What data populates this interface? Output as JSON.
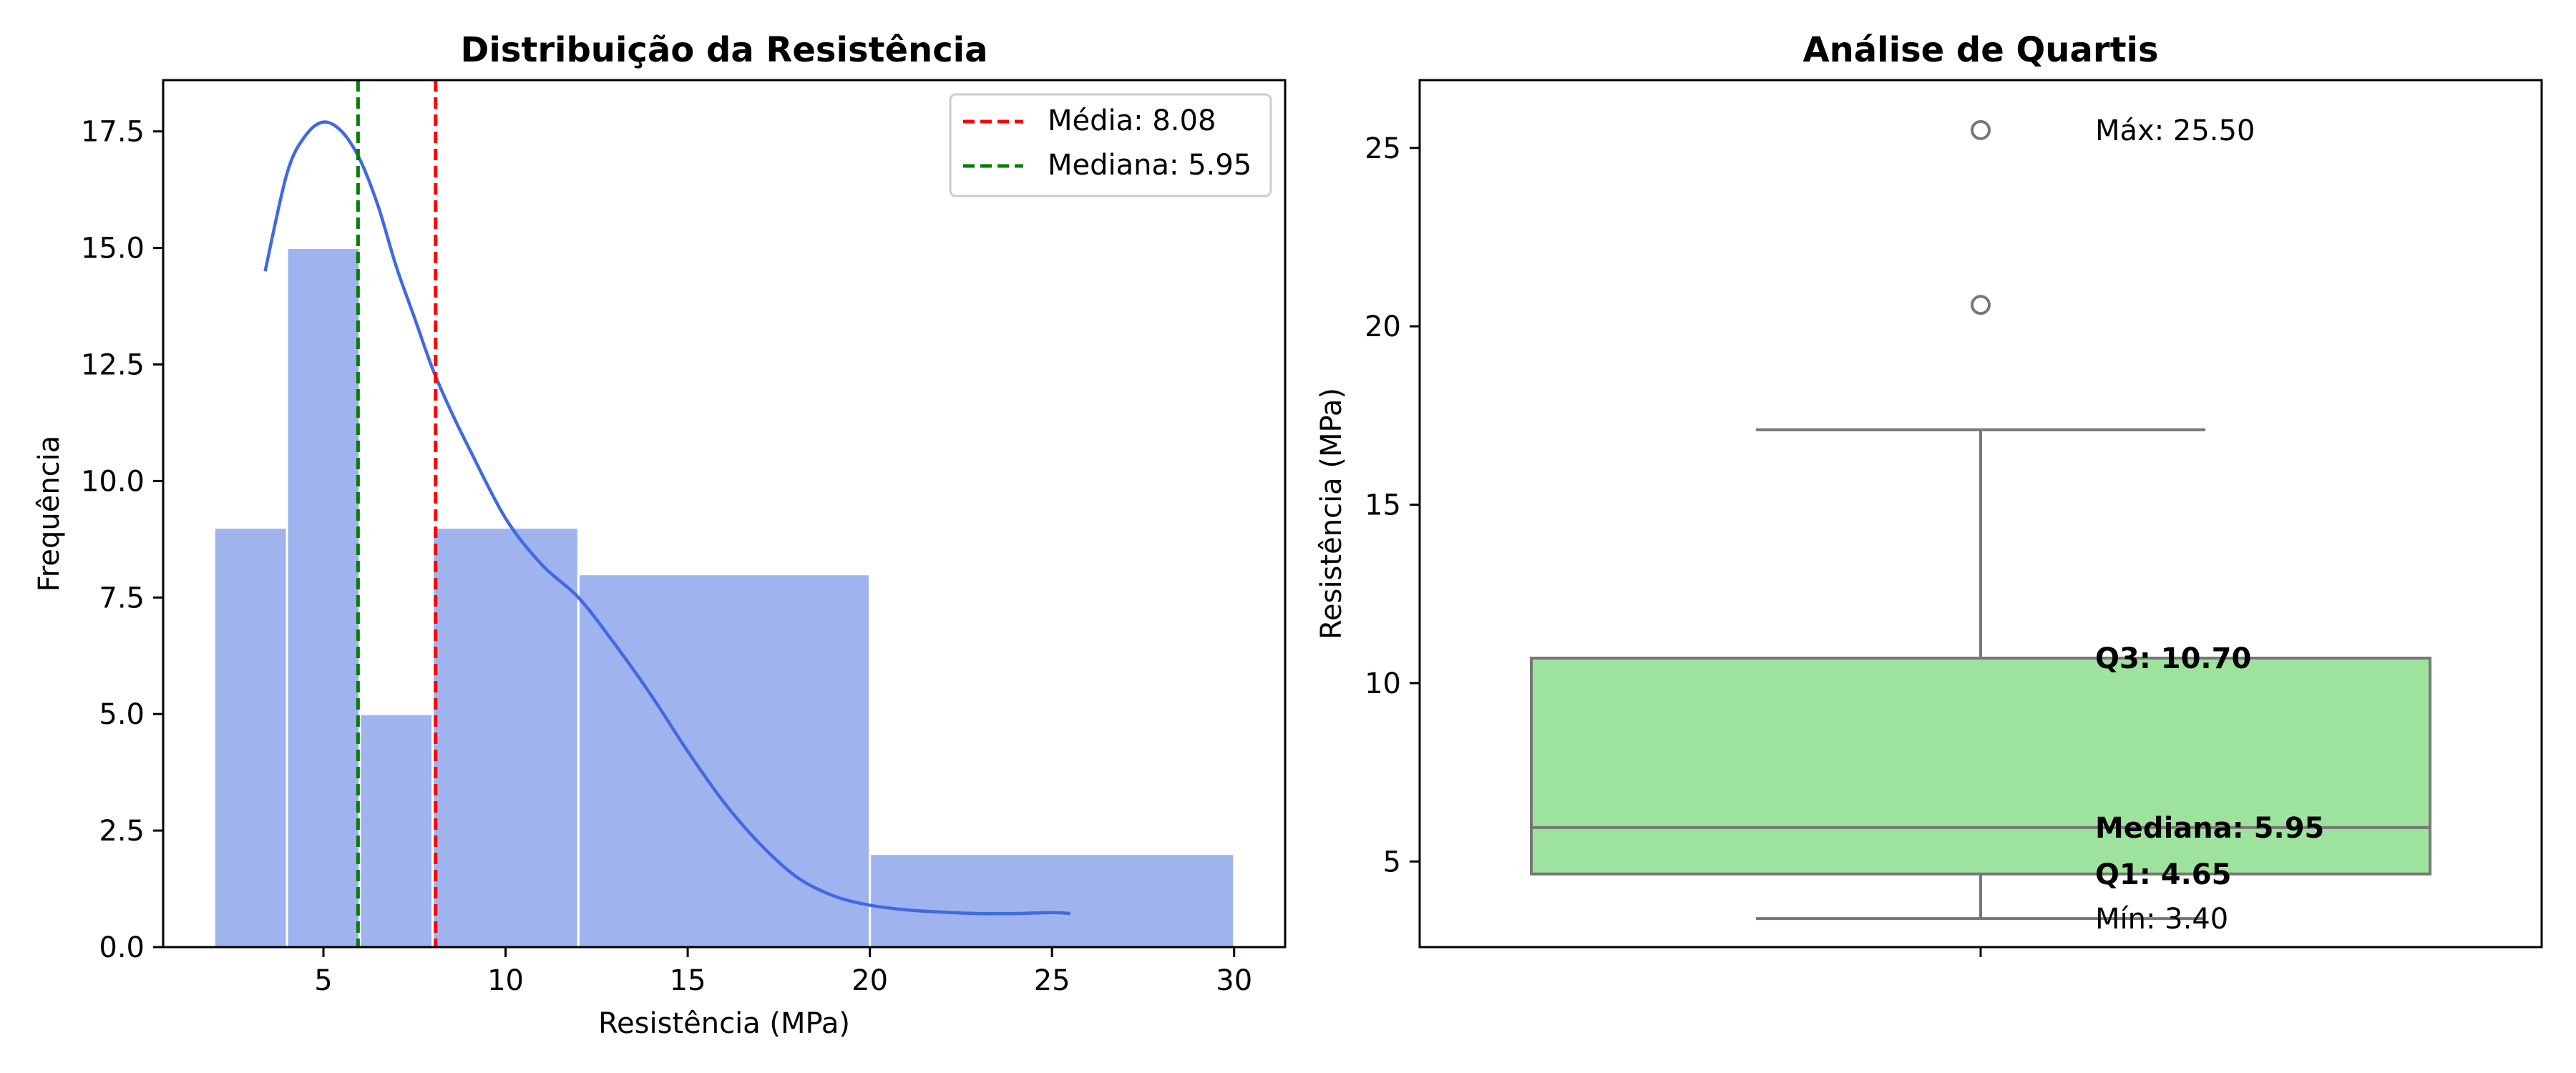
{
  "chart_data": [
    {
      "type": "bar",
      "title": "Distribuição da Resistência",
      "xlabel": "Resistência (MPa)",
      "ylabel": "Frequência",
      "xlim": [
        0.6,
        31.4
      ],
      "ylim": [
        0,
        18.6
      ],
      "xticks": [
        5,
        10,
        15,
        20,
        25,
        30
      ],
      "yticks": [
        0,
        2.5,
        5,
        7.5,
        10,
        12.5,
        15,
        17.5
      ],
      "xtick_labels": [
        "5",
        "10",
        "15",
        "20",
        "25",
        "30"
      ],
      "ytick_labels": [
        "0.0",
        "2.5",
        "5.0",
        "7.5",
        "10.0",
        "12.5",
        "15.0",
        "17.5"
      ],
      "bins": [
        {
          "start": 2,
          "end": 4,
          "count": 9
        },
        {
          "start": 4,
          "end": 6,
          "count": 15
        },
        {
          "start": 6,
          "end": 8,
          "count": 5
        },
        {
          "start": 8,
          "end": 12,
          "count": 9
        },
        {
          "start": 12,
          "end": 20,
          "count": 8
        },
        {
          "start": 20,
          "end": 30,
          "count": 2
        }
      ],
      "kde": {
        "x": [
          3.4,
          4.0,
          4.5,
          5.0,
          5.5,
          6.0,
          6.5,
          7.0,
          7.5,
          8.0,
          8.5,
          9.0,
          10.0,
          11.0,
          12.0,
          13.0,
          14.0,
          15.0,
          16.0,
          17.0,
          18.0,
          19.0,
          20.0,
          21.0,
          22.0,
          23.0,
          24.0,
          25.0,
          25.5
        ],
        "y": [
          14.5,
          16.6,
          17.4,
          17.7,
          17.5,
          16.9,
          15.9,
          14.6,
          13.5,
          12.4,
          11.5,
          10.7,
          9.2,
          8.2,
          7.5,
          6.5,
          5.4,
          4.2,
          3.1,
          2.2,
          1.5,
          1.1,
          0.9,
          0.8,
          0.75,
          0.72,
          0.72,
          0.74,
          0.72
        ]
      },
      "vlines": [
        {
          "label": "Média: 8.08",
          "x": 8.08,
          "color": "#ff0000"
        },
        {
          "label": "Mediana: 5.95",
          "x": 5.95,
          "color": "#008000"
        }
      ],
      "legend_placement": "upper right",
      "bar_color": "#9fb4ee",
      "kde_color": "#4169e1",
      "grid": false
    },
    {
      "type": "box",
      "title": "Análise de Quartis",
      "xlabel": "",
      "ylabel": "Resistência (MPa)",
      "ylim": [
        2.6,
        26.9
      ],
      "yticks": [
        5,
        10,
        15,
        20,
        25
      ],
      "ytick_labels": [
        "5",
        "10",
        "15",
        "20",
        "25"
      ],
      "box": {
        "q1": 4.65,
        "median": 5.95,
        "q3": 10.7,
        "whisker_low": 3.4,
        "whisker_high": 17.1,
        "outliers": [
          20.6,
          25.5
        ]
      },
      "box_color": "#9de39d",
      "line_color": "#777777",
      "annotations": [
        {
          "text": "Máx: 25.50",
          "y": 25.5,
          "bold": false
        },
        {
          "text": "Q3: 10.70",
          "y": 10.7,
          "bold": true
        },
        {
          "text": "Mediana: 5.95",
          "y": 5.95,
          "bold": true
        },
        {
          "text": "Q1: 4.65",
          "y": 4.65,
          "bold": true
        },
        {
          "text": "Mín: 3.40",
          "y": 3.4,
          "bold": false
        }
      ],
      "grid": false
    }
  ]
}
